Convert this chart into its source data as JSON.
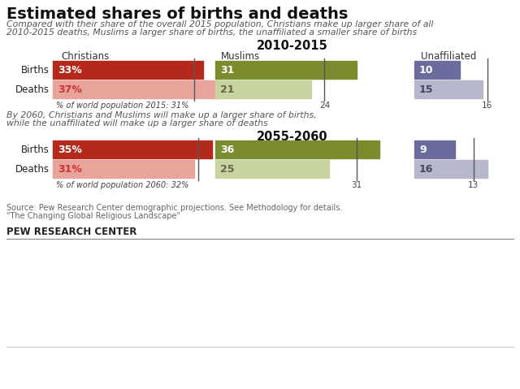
{
  "title": "Estimated shares of births and deaths",
  "subtitle1": "Compared with their share of the overall 2015 population, Christians make up larger share of all",
  "subtitle2": "2010-2015 deaths, Muslims a larger share of births, the unaffiliated a smaller share of births",
  "subtitle3": "By 2060, Christians and Muslims will make up a larger share of births,",
  "subtitle4": "while the unaffiliated will make up a larger share of deaths",
  "period1_title": "2010-2015",
  "period2_title": "2055-2060",
  "groups": [
    "Christians",
    "Muslims",
    "Unaffiliated"
  ],
  "period1": {
    "births": [
      33,
      31,
      10
    ],
    "deaths": [
      37,
      21,
      15
    ],
    "ref_lines": [
      31,
      24,
      16
    ],
    "ref_label": "% of world population 2015: 31%"
  },
  "period2": {
    "births": [
      35,
      36,
      9
    ],
    "deaths": [
      31,
      25,
      16
    ],
    "ref_lines": [
      32,
      31,
      13
    ],
    "ref_label": "% of world population 2060: 32%"
  },
  "colors": {
    "christians_births": "#b5291c",
    "christians_deaths": "#e8a49a",
    "muslims_births": "#7a8c2e",
    "muslims_deaths": "#c8d4a0",
    "unaffiliated_births": "#6b6b9e",
    "unaffiliated_deaths": "#b8b8cc"
  },
  "source_text1": "Source: Pew Research Center demographic projections. See Methodology for details.",
  "source_text2": "\"The Changing Global Religious Landscape\"",
  "footer": "PEW RESEARCH CENTER",
  "background_color": "#ffffff"
}
